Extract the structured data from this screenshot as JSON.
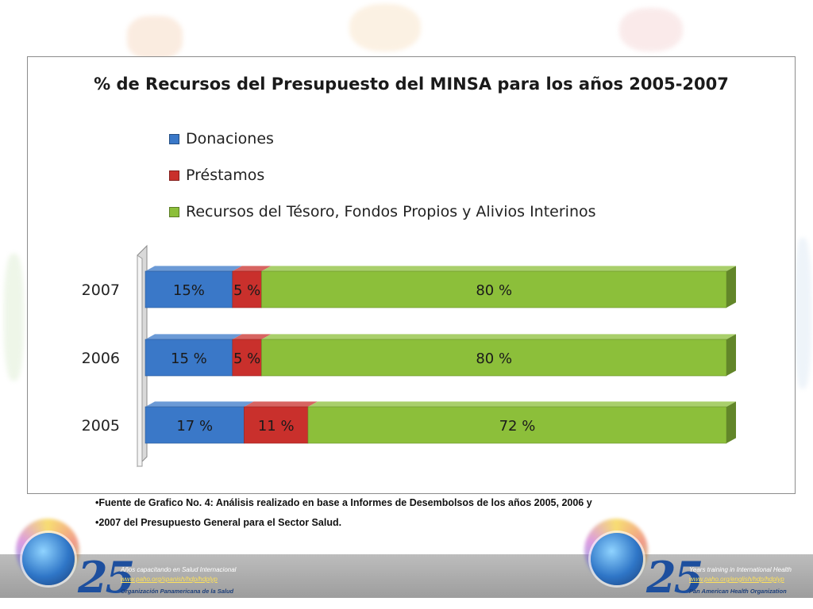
{
  "chart_data": {
    "type": "bar",
    "orientation": "horizontal",
    "stacked": true,
    "title": "% de Recursos del Presupuesto del MINSA para los años 2005-2007",
    "categories": [
      "2007",
      "2006",
      "2005"
    ],
    "series": [
      {
        "name": "Donaciones",
        "color": "#3a78c8",
        "values": [
          15,
          15,
          17
        ],
        "labels": [
          "15%",
          "15 %",
          "17 %"
        ]
      },
      {
        "name": "Préstamos",
        "color": "#c9302c",
        "values": [
          5,
          5,
          11
        ],
        "labels": [
          "5  %",
          "5  %",
          "11 %"
        ]
      },
      {
        "name": "Recursos del Tésoro, Fondos Propios y Alivios Interinos",
        "color": "#8cbf3a",
        "values": [
          80,
          80,
          72
        ],
        "labels": [
          "80 %",
          "80 %",
          "72 %"
        ]
      }
    ],
    "xlim": [
      0,
      100
    ],
    "grid": false,
    "legend": "top"
  },
  "footnotes": [
    "•Fuente de Grafico No. 4: Análisis realizado en base a Informes de Desembolsos de los años 2005, 2006 y",
    "•2007 del Presupuesto General para el Sector Salud."
  ],
  "logos": {
    "left": {
      "number": "25",
      "line1": "Años capacitando en Salud Internacional",
      "line2": "www.paho.org/spanish/hdp/hdplyp",
      "line3": "Organización Panamericana de la Salud"
    },
    "right": {
      "number": "25",
      "line1": "Years training in International Health",
      "line2": "www.paho.org/english/hdp/hdplyp",
      "line3": "Pan American Health Organization"
    }
  }
}
